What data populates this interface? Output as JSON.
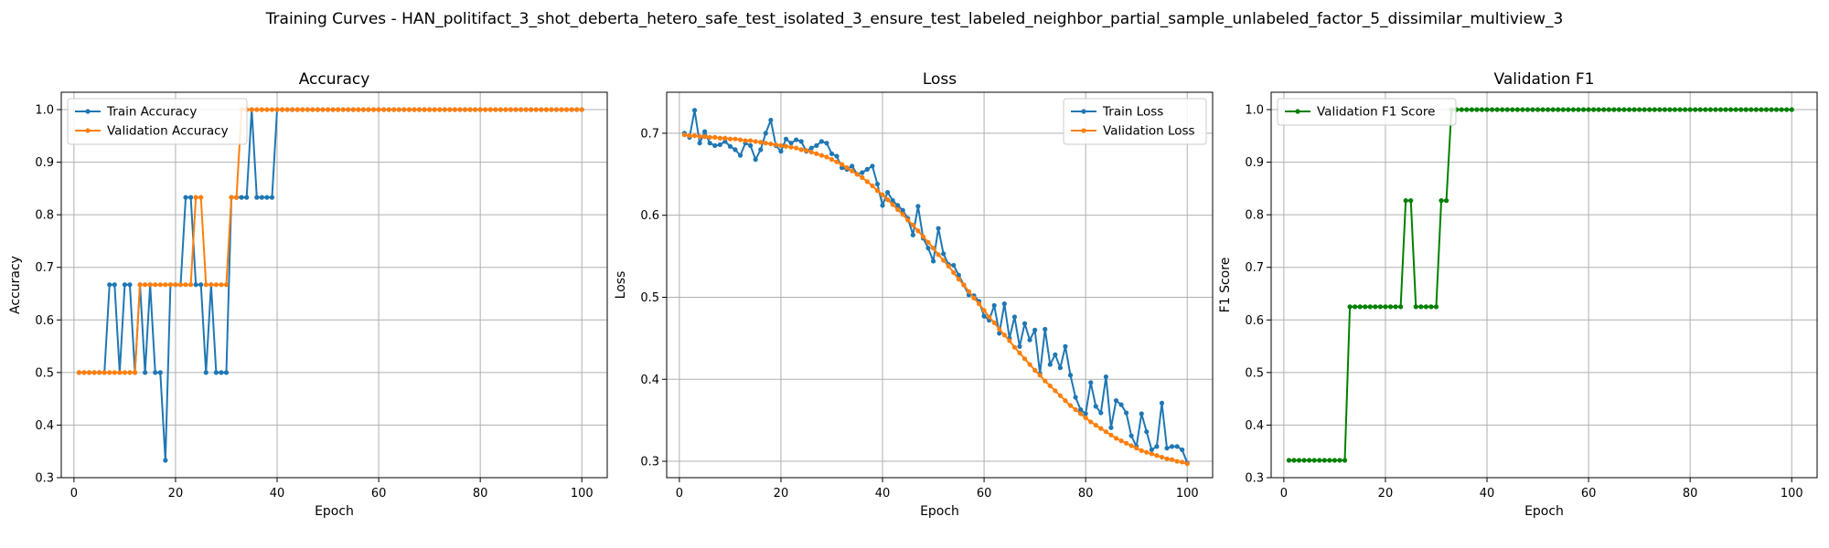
{
  "figure_title": "Training Curves - HAN_politifact_3_shot_deberta_hetero_safe_test_isolated_3_ensure_test_labeled_neighbor_partial_sample_unlabeled_factor_5_dissimilar_multiview_3",
  "colors": {
    "blue": "#1f77b4",
    "orange": "#ff7f0e",
    "green": "#008000",
    "grid": "#b0b0b0"
  },
  "chart_data": [
    {
      "type": "line",
      "title": "Accuracy",
      "xlabel": "Epoch",
      "ylabel": "Accuracy",
      "xlim": [
        -2.5,
        105
      ],
      "ylim": [
        0.3,
        1.033
      ],
      "xticks": [
        "0",
        "20",
        "40",
        "60",
        "80",
        "100"
      ],
      "yticks": [
        "0.3",
        "0.4",
        "0.5",
        "0.6",
        "0.7",
        "0.8",
        "0.9",
        "1.0"
      ],
      "grid": true,
      "legend_position": "upper-left",
      "x": [
        1,
        2,
        3,
        4,
        5,
        6,
        7,
        8,
        9,
        10,
        11,
        12,
        13,
        14,
        15,
        16,
        17,
        18,
        19,
        20,
        21,
        22,
        23,
        24,
        25,
        26,
        27,
        28,
        29,
        30,
        31,
        32,
        33,
        34,
        35,
        36,
        37,
        38,
        39,
        40,
        41,
        42,
        43,
        44,
        45,
        46,
        47,
        48,
        49,
        50,
        51,
        52,
        53,
        54,
        55,
        56,
        57,
        58,
        59,
        60,
        61,
        62,
        63,
        64,
        65,
        66,
        67,
        68,
        69,
        70,
        71,
        72,
        73,
        74,
        75,
        76,
        77,
        78,
        79,
        80,
        81,
        82,
        83,
        84,
        85,
        86,
        87,
        88,
        89,
        90,
        91,
        92,
        93,
        94,
        95,
        96,
        97,
        98,
        99,
        100
      ],
      "series": [
        {
          "name": "Train Accuracy",
          "color": "#1f77b4",
          "values": [
            0.5,
            0.5,
            0.5,
            0.5,
            0.5,
            0.5,
            0.667,
            0.667,
            0.5,
            0.667,
            0.667,
            0.5,
            0.667,
            0.5,
            0.667,
            0.5,
            0.5,
            0.333,
            0.667,
            0.667,
            0.667,
            0.833,
            0.833,
            0.667,
            0.667,
            0.5,
            0.667,
            0.5,
            0.5,
            0.5,
            0.833,
            0.833,
            0.833,
            0.833,
            1.0,
            0.833,
            0.833,
            0.833,
            0.833,
            1.0,
            1.0,
            1.0,
            1.0,
            1.0,
            1.0,
            1.0,
            1.0,
            1.0,
            1.0,
            1.0,
            1.0,
            1.0,
            1.0,
            1.0,
            1.0,
            1.0,
            1.0,
            1.0,
            1.0,
            1.0,
            1.0,
            1.0,
            1.0,
            1.0,
            1.0,
            1.0,
            1.0,
            1.0,
            1.0,
            1.0,
            1.0,
            1.0,
            1.0,
            1.0,
            1.0,
            1.0,
            1.0,
            1.0,
            1.0,
            1.0,
            1.0,
            1.0,
            1.0,
            1.0,
            1.0,
            1.0,
            1.0,
            1.0,
            1.0,
            1.0,
            1.0,
            1.0,
            1.0,
            1.0,
            1.0,
            1.0,
            1.0,
            1.0,
            1.0,
            1.0
          ]
        },
        {
          "name": "Validation Accuracy",
          "color": "#ff7f0e",
          "values": [
            0.5,
            0.5,
            0.5,
            0.5,
            0.5,
            0.5,
            0.5,
            0.5,
            0.5,
            0.5,
            0.5,
            0.5,
            0.667,
            0.667,
            0.667,
            0.667,
            0.667,
            0.667,
            0.667,
            0.667,
            0.667,
            0.667,
            0.667,
            0.833,
            0.833,
            0.667,
            0.667,
            0.667,
            0.667,
            0.667,
            0.833,
            0.833,
            1.0,
            1.0,
            1.0,
            1.0,
            1.0,
            1.0,
            1.0,
            1.0,
            1.0,
            1.0,
            1.0,
            1.0,
            1.0,
            1.0,
            1.0,
            1.0,
            1.0,
            1.0,
            1.0,
            1.0,
            1.0,
            1.0,
            1.0,
            1.0,
            1.0,
            1.0,
            1.0,
            1.0,
            1.0,
            1.0,
            1.0,
            1.0,
            1.0,
            1.0,
            1.0,
            1.0,
            1.0,
            1.0,
            1.0,
            1.0,
            1.0,
            1.0,
            1.0,
            1.0,
            1.0,
            1.0,
            1.0,
            1.0,
            1.0,
            1.0,
            1.0,
            1.0,
            1.0,
            1.0,
            1.0,
            1.0,
            1.0,
            1.0,
            1.0,
            1.0,
            1.0,
            1.0,
            1.0,
            1.0,
            1.0,
            1.0,
            1.0,
            1.0
          ]
        }
      ]
    },
    {
      "type": "line",
      "title": "Loss",
      "xlabel": "Epoch",
      "ylabel": "Loss",
      "xlim": [
        -2.5,
        105
      ],
      "ylim": [
        0.28,
        0.75
      ],
      "xticks": [
        "0",
        "20",
        "40",
        "60",
        "80",
        "100"
      ],
      "yticks": [
        "0.3",
        "0.4",
        "0.5",
        "0.6",
        "0.7"
      ],
      "grid": true,
      "legend_position": "upper-right",
      "x": [
        1,
        2,
        3,
        4,
        5,
        6,
        7,
        8,
        9,
        10,
        11,
        12,
        13,
        14,
        15,
        16,
        17,
        18,
        19,
        20,
        21,
        22,
        23,
        24,
        25,
        26,
        27,
        28,
        29,
        30,
        31,
        32,
        33,
        34,
        35,
        36,
        37,
        38,
        39,
        40,
        41,
        42,
        43,
        44,
        45,
        46,
        47,
        48,
        49,
        50,
        51,
        52,
        53,
        54,
        55,
        56,
        57,
        58,
        59,
        60,
        61,
        62,
        63,
        64,
        65,
        66,
        67,
        68,
        69,
        70,
        71,
        72,
        73,
        74,
        75,
        76,
        77,
        78,
        79,
        80,
        81,
        82,
        83,
        84,
        85,
        86,
        87,
        88,
        89,
        90,
        91,
        92,
        93,
        94,
        95,
        96,
        97,
        98,
        99,
        100
      ],
      "series": [
        {
          "name": "Train Loss",
          "color": "#1f77b4",
          "values": [
            0.7,
            0.695,
            0.728,
            0.688,
            0.702,
            0.688,
            0.685,
            0.686,
            0.69,
            0.684,
            0.68,
            0.673,
            0.688,
            0.685,
            0.668,
            0.68,
            0.7,
            0.716,
            0.685,
            0.678,
            0.693,
            0.688,
            0.692,
            0.69,
            0.678,
            0.682,
            0.685,
            0.69,
            0.688,
            0.675,
            0.672,
            0.658,
            0.656,
            0.66,
            0.65,
            0.652,
            0.656,
            0.66,
            0.638,
            0.612,
            0.628,
            0.618,
            0.612,
            0.606,
            0.596,
            0.576,
            0.611,
            0.572,
            0.56,
            0.544,
            0.584,
            0.553,
            0.54,
            0.539,
            0.527,
            0.515,
            0.503,
            0.502,
            0.495,
            0.477,
            0.472,
            0.49,
            0.456,
            0.492,
            0.45,
            0.476,
            0.44,
            0.468,
            0.448,
            0.46,
            0.407,
            0.461,
            0.418,
            0.43,
            0.414,
            0.44,
            0.405,
            0.378,
            0.363,
            0.358,
            0.396,
            0.367,
            0.359,
            0.403,
            0.341,
            0.374,
            0.369,
            0.359,
            0.331,
            0.318,
            0.358,
            0.336,
            0.314,
            0.318,
            0.371,
            0.316,
            0.318,
            0.318,
            0.314,
            0.298
          ]
        },
        {
          "name": "Validation Loss",
          "color": "#ff7f0e",
          "values": [
            0.698,
            0.697,
            0.697,
            0.696,
            0.696,
            0.695,
            0.695,
            0.694,
            0.694,
            0.693,
            0.693,
            0.692,
            0.691,
            0.691,
            0.69,
            0.689,
            0.688,
            0.687,
            0.686,
            0.685,
            0.684,
            0.683,
            0.682,
            0.68,
            0.679,
            0.677,
            0.675,
            0.673,
            0.671,
            0.668,
            0.665,
            0.662,
            0.658,
            0.654,
            0.65,
            0.646,
            0.641,
            0.636,
            0.63,
            0.625,
            0.619,
            0.613,
            0.607,
            0.601,
            0.594,
            0.588,
            0.581,
            0.574,
            0.567,
            0.56,
            0.552,
            0.545,
            0.538,
            0.53,
            0.522,
            0.515,
            0.507,
            0.499,
            0.492,
            0.484,
            0.476,
            0.469,
            0.461,
            0.454,
            0.447,
            0.439,
            0.432,
            0.425,
            0.418,
            0.411,
            0.405,
            0.398,
            0.392,
            0.386,
            0.38,
            0.374,
            0.368,
            0.363,
            0.358,
            0.353,
            0.348,
            0.344,
            0.34,
            0.336,
            0.332,
            0.328,
            0.325,
            0.322,
            0.319,
            0.316,
            0.313,
            0.311,
            0.309,
            0.307,
            0.305,
            0.303,
            0.302,
            0.3,
            0.299,
            0.297
          ]
        }
      ]
    },
    {
      "type": "line",
      "title": "Validation F1",
      "xlabel": "Epoch",
      "ylabel": "F1 Score",
      "xlim": [
        -2.5,
        105
      ],
      "ylim": [
        0.3,
        1.033
      ],
      "xticks": [
        "0",
        "20",
        "40",
        "60",
        "80",
        "100"
      ],
      "yticks": [
        "0.3",
        "0.4",
        "0.5",
        "0.6",
        "0.7",
        "0.8",
        "0.9",
        "1.0"
      ],
      "grid": true,
      "legend_position": "upper-left",
      "x": [
        1,
        2,
        3,
        4,
        5,
        6,
        7,
        8,
        9,
        10,
        11,
        12,
        13,
        14,
        15,
        16,
        17,
        18,
        19,
        20,
        21,
        22,
        23,
        24,
        25,
        26,
        27,
        28,
        29,
        30,
        31,
        32,
        33,
        34,
        35,
        36,
        37,
        38,
        39,
        40,
        41,
        42,
        43,
        44,
        45,
        46,
        47,
        48,
        49,
        50,
        51,
        52,
        53,
        54,
        55,
        56,
        57,
        58,
        59,
        60,
        61,
        62,
        63,
        64,
        65,
        66,
        67,
        68,
        69,
        70,
        71,
        72,
        73,
        74,
        75,
        76,
        77,
        78,
        79,
        80,
        81,
        82,
        83,
        84,
        85,
        86,
        87,
        88,
        89,
        90,
        91,
        92,
        93,
        94,
        95,
        96,
        97,
        98,
        99,
        100
      ],
      "series": [
        {
          "name": "Validation F1 Score",
          "color": "#008000",
          "values": [
            0.333,
            0.333,
            0.333,
            0.333,
            0.333,
            0.333,
            0.333,
            0.333,
            0.333,
            0.333,
            0.333,
            0.333,
            0.625,
            0.625,
            0.625,
            0.625,
            0.625,
            0.625,
            0.625,
            0.625,
            0.625,
            0.625,
            0.625,
            0.827,
            0.827,
            0.625,
            0.625,
            0.625,
            0.625,
            0.625,
            0.827,
            0.827,
            1.0,
            1.0,
            1.0,
            1.0,
            1.0,
            1.0,
            1.0,
            1.0,
            1.0,
            1.0,
            1.0,
            1.0,
            1.0,
            1.0,
            1.0,
            1.0,
            1.0,
            1.0,
            1.0,
            1.0,
            1.0,
            1.0,
            1.0,
            1.0,
            1.0,
            1.0,
            1.0,
            1.0,
            1.0,
            1.0,
            1.0,
            1.0,
            1.0,
            1.0,
            1.0,
            1.0,
            1.0,
            1.0,
            1.0,
            1.0,
            1.0,
            1.0,
            1.0,
            1.0,
            1.0,
            1.0,
            1.0,
            1.0,
            1.0,
            1.0,
            1.0,
            1.0,
            1.0,
            1.0,
            1.0,
            1.0,
            1.0,
            1.0,
            1.0,
            1.0,
            1.0,
            1.0,
            1.0,
            1.0,
            1.0,
            1.0,
            1.0,
            1.0
          ]
        }
      ]
    }
  ]
}
